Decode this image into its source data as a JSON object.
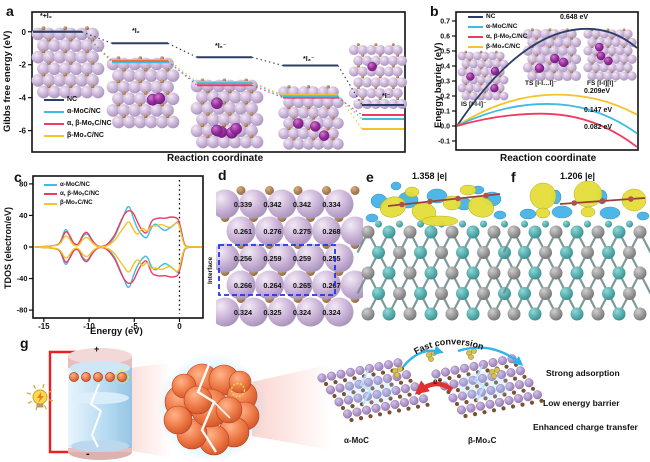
{
  "colors": {
    "navy": "#2c3e66",
    "cyan": "#3fbcdf",
    "red": "#f03a5f",
    "yellow": "#f3c327",
    "lavender": "#c9b2d6",
    "brown": "#a5784f",
    "magenta": "#9b2fa0",
    "teal": "#46a5a5",
    "gray": "#8f8f8f",
    "iso_yellow": "#e4de3b",
    "iso_blue": "#45b4e6",
    "orange": "#e8763f",
    "pink_cap": "#e7c0be",
    "flake_purple": "#a98fc5",
    "bond_brown": "#7a5230",
    "interface_box": "#2233ee",
    "wire_red": "#e82020",
    "arrow_cyan": "#2fb3e8",
    "arrow_red": "#e03030"
  },
  "figure": {
    "panel_a": {
      "tag": "a",
      "ylabel": "Gibbs free energy (eV)",
      "xlabel": "Reaction coordinate",
      "step_labels": [
        "*+I₂",
        "*I₂",
        "*I₆⁻",
        "*I₃⁻",
        "*I⁻"
      ],
      "legend": [
        "NC",
        "α-MoC/NC",
        "α, β-MoₓC/NC",
        "β-Mo₂C/NC"
      ]
    },
    "panel_b": {
      "tag": "b",
      "ylabel": "Energy barrier (eV)",
      "xlabel": "Reaction coordinate",
      "legend": [
        "NC",
        "α-MoC/NC",
        "α, β-MoₓC/NC",
        "β-Mo₂C/NC"
      ],
      "annotations": [
        "0.648 eV",
        "0.209eV",
        "0.147 eV",
        "0.082 eV"
      ],
      "state_labels": [
        "IS [I-I-I]⁻",
        "TS [I-I…I]⁻",
        "FS [I-I][I]⁻"
      ]
    },
    "panel_c": {
      "tag": "c",
      "ylabel": "TDOS (electron/eV)",
      "xlabel": "Energy (eV)",
      "legend": [
        "α-MoC/NC",
        "α, β-MoₓC/NC",
        "β-Mo₂C/NC"
      ]
    },
    "panel_d": {
      "tag": "d",
      "interface_label": "Interface",
      "charges": [
        [
          "0.339",
          "0.342",
          "0.342",
          "0.334"
        ],
        [
          "0.261",
          "0.276",
          "0.275",
          "0.268"
        ],
        [
          "0.256",
          "0.259",
          "0.259",
          "0.255"
        ],
        [
          "0.266",
          "0.264",
          "0.265",
          "0.267"
        ],
        [
          "0.324",
          "0.325",
          "0.324",
          "0.324"
        ]
      ]
    },
    "panel_e": {
      "tag": "e",
      "title": "1.358 |e|"
    },
    "panel_f": {
      "tag": "f",
      "title": "1.206 |e|"
    },
    "panel_g": {
      "tag": "g",
      "plus": "+",
      "minus": "-",
      "fast_conversion": "Fast conversion",
      "electron": "e⁻",
      "alpha_label": "α-MoC",
      "beta_label": "β-Mo₂C",
      "features": [
        "Strong adsorption",
        "Low energy barrier",
        "Enhanced charge transfer"
      ]
    }
  },
  "chart_data": [
    {
      "panel": "a",
      "type": "line",
      "subtype": "free-energy-step-diagram",
      "xlabel": "Reaction coordinate",
      "ylabel": "Gibbs free energy (eV)",
      "yticks": [
        0,
        -2,
        -4,
        -6
      ],
      "ylim": [
        -7.3,
        1.2
      ],
      "categories": [
        "*+I₂",
        "*I₂",
        "*I₆⁻",
        "*I₃⁻",
        "*I⁻"
      ],
      "series": [
        {
          "name": "NC",
          "color_key": "navy",
          "values": [
            0,
            -0.7,
            -1.55,
            -2.05,
            -4.45
          ]
        },
        {
          "name": "α-MoC/NC",
          "color_key": "cyan",
          "values": [
            0,
            -1.85,
            -3.12,
            -3.92,
            -5.3
          ]
        },
        {
          "name": "α, β-MoₓC/NC",
          "color_key": "red",
          "values": [
            0,
            -1.8,
            -3.25,
            -4.0,
            -5.05
          ]
        },
        {
          "name": "β-Mo₂C/NC",
          "color_key": "yellow",
          "values": [
            0,
            -1.72,
            -3.05,
            -3.85,
            -5.9
          ]
        }
      ],
      "legend_order_color_keys": [
        "navy",
        "cyan",
        "red",
        "yellow"
      ]
    },
    {
      "panel": "b",
      "type": "line",
      "subtype": "energy-barrier-curves",
      "xlabel": "Reaction coordinate",
      "ylabel": "Energy barrier (eV)",
      "yticks": [
        0.7,
        0.6,
        0.5,
        0.4,
        0.3,
        0.2,
        0.1,
        0.0,
        -0.1
      ],
      "ylim": [
        -0.16,
        0.76
      ],
      "series": [
        {
          "name": "NC",
          "color_key": "navy",
          "start": 0.0,
          "peak": 0.648,
          "peak_pos": 0.72,
          "end": 0.52
        },
        {
          "name": "β-Mo₂C/NC",
          "color_key": "yellow",
          "start": 0.0,
          "peak": 0.209,
          "peak_pos": 0.55,
          "end": 0.075
        },
        {
          "name": "α-MoC/NC",
          "color_key": "cyan",
          "start": 0.0,
          "peak": 0.147,
          "peak_pos": 0.5,
          "end": -0.05
        },
        {
          "name": "α, β-MoₓC/NC",
          "color_key": "red",
          "start": 0.0,
          "peak": 0.082,
          "peak_pos": 0.47,
          "end": -0.14
        }
      ],
      "barrier_values_eV": {
        "NC": 0.648,
        "β-Mo₂C/NC": 0.209,
        "α-MoC/NC": 0.147,
        "α, β-MoₓC/NC": 0.082
      },
      "legend_order_color_keys": [
        "navy",
        "cyan",
        "red",
        "yellow"
      ]
    },
    {
      "panel": "c",
      "type": "line",
      "subtype": "total-density-of-states",
      "xlabel": "Energy (eV)",
      "ylabel": "TDOS (electron/eV)",
      "xticks": [
        -15,
        -10,
        -5,
        0
      ],
      "yticks": [
        -80,
        -40,
        0,
        40,
        80
      ],
      "xlim": [
        -16.2,
        2.6
      ],
      "ylim": [
        -90,
        90
      ],
      "fermi_level_x": 0,
      "x": [
        -16,
        -13.6,
        -13.1,
        -12.6,
        -12.1,
        -11.7,
        -11.2,
        -10.7,
        -10.2,
        -9.7,
        -9.2,
        -8.7,
        -8.1,
        -7.6,
        -7.1,
        -6.6,
        -6.1,
        -5.6,
        -5.1,
        -4.6,
        -4.1,
        -3.6,
        -3.1,
        -2.6,
        -2.1,
        -1.6,
        -1.1,
        -0.6,
        -0.1,
        0.2,
        0.5,
        0.9,
        2.5
      ],
      "series": [
        {
          "name": "α-MoC/NC",
          "color_key": "cyan",
          "spin_up": [
            0,
            1,
            7,
            26,
            12,
            2,
            1,
            14,
            18,
            8,
            1,
            0,
            2,
            6,
            14,
            28,
            42,
            55,
            36,
            22,
            14,
            10,
            26,
            30,
            24,
            20,
            24,
            28,
            34,
            22,
            3,
            0,
            0
          ]
        },
        {
          "name": "α, β-MoₓC/NC",
          "color_key": "red",
          "spin_up": [
            0,
            1,
            6,
            22,
            14,
            4,
            2,
            16,
            20,
            9,
            2,
            0,
            2,
            8,
            16,
            30,
            42,
            47,
            44,
            30,
            20,
            16,
            34,
            36,
            37,
            36,
            38,
            38,
            36,
            20,
            3,
            0,
            0
          ]
        },
        {
          "name": "β-Mo₂C/NC",
          "color_key": "yellow",
          "spin_up": [
            0,
            1,
            5,
            16,
            9,
            2,
            1,
            10,
            13,
            6,
            1,
            0,
            1,
            4,
            9,
            18,
            26,
            34,
            22,
            14,
            26,
            18,
            28,
            26,
            29,
            27,
            24,
            29,
            32,
            16,
            2,
            0,
            0
          ]
        }
      ],
      "legend_order_color_keys": [
        "cyan",
        "red",
        "yellow"
      ],
      "note": "spin-down mirrors spin-up"
    }
  ]
}
